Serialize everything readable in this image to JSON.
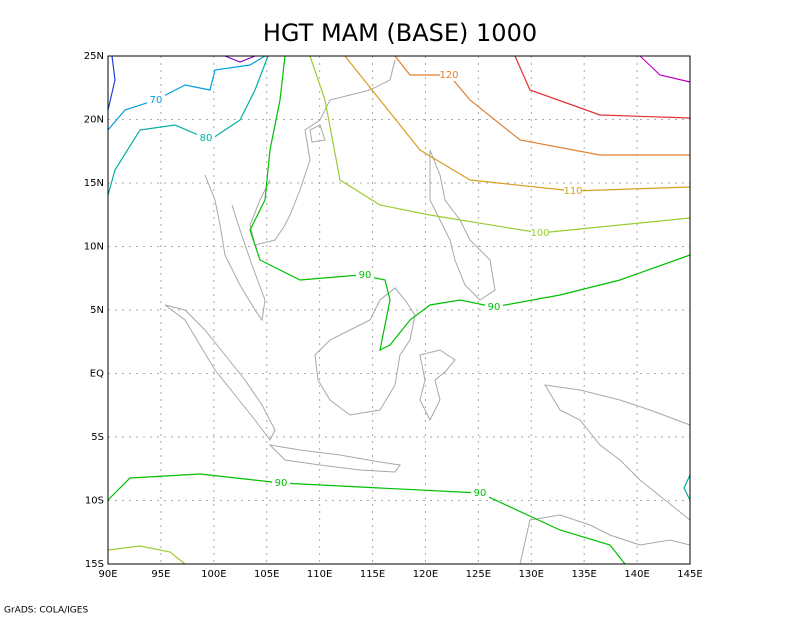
{
  "title": "HGT MAM (BASE) 1000",
  "x_axis": {
    "labels": [
      "90E",
      "95E",
      "100E",
      "105E",
      "110E",
      "115E",
      "120E",
      "125E",
      "130E",
      "135E",
      "140E",
      "145E"
    ]
  },
  "y_axis": {
    "labels": [
      "25N",
      "20N",
      "15N",
      "10N",
      "5N",
      "EQ",
      "5S",
      "10S",
      "15S"
    ]
  },
  "contour_labels": [
    "120",
    "70",
    "80",
    "110",
    "100",
    "90",
    "90",
    "90",
    "90"
  ],
  "footer": "GrADS: COLA/IGES"
}
